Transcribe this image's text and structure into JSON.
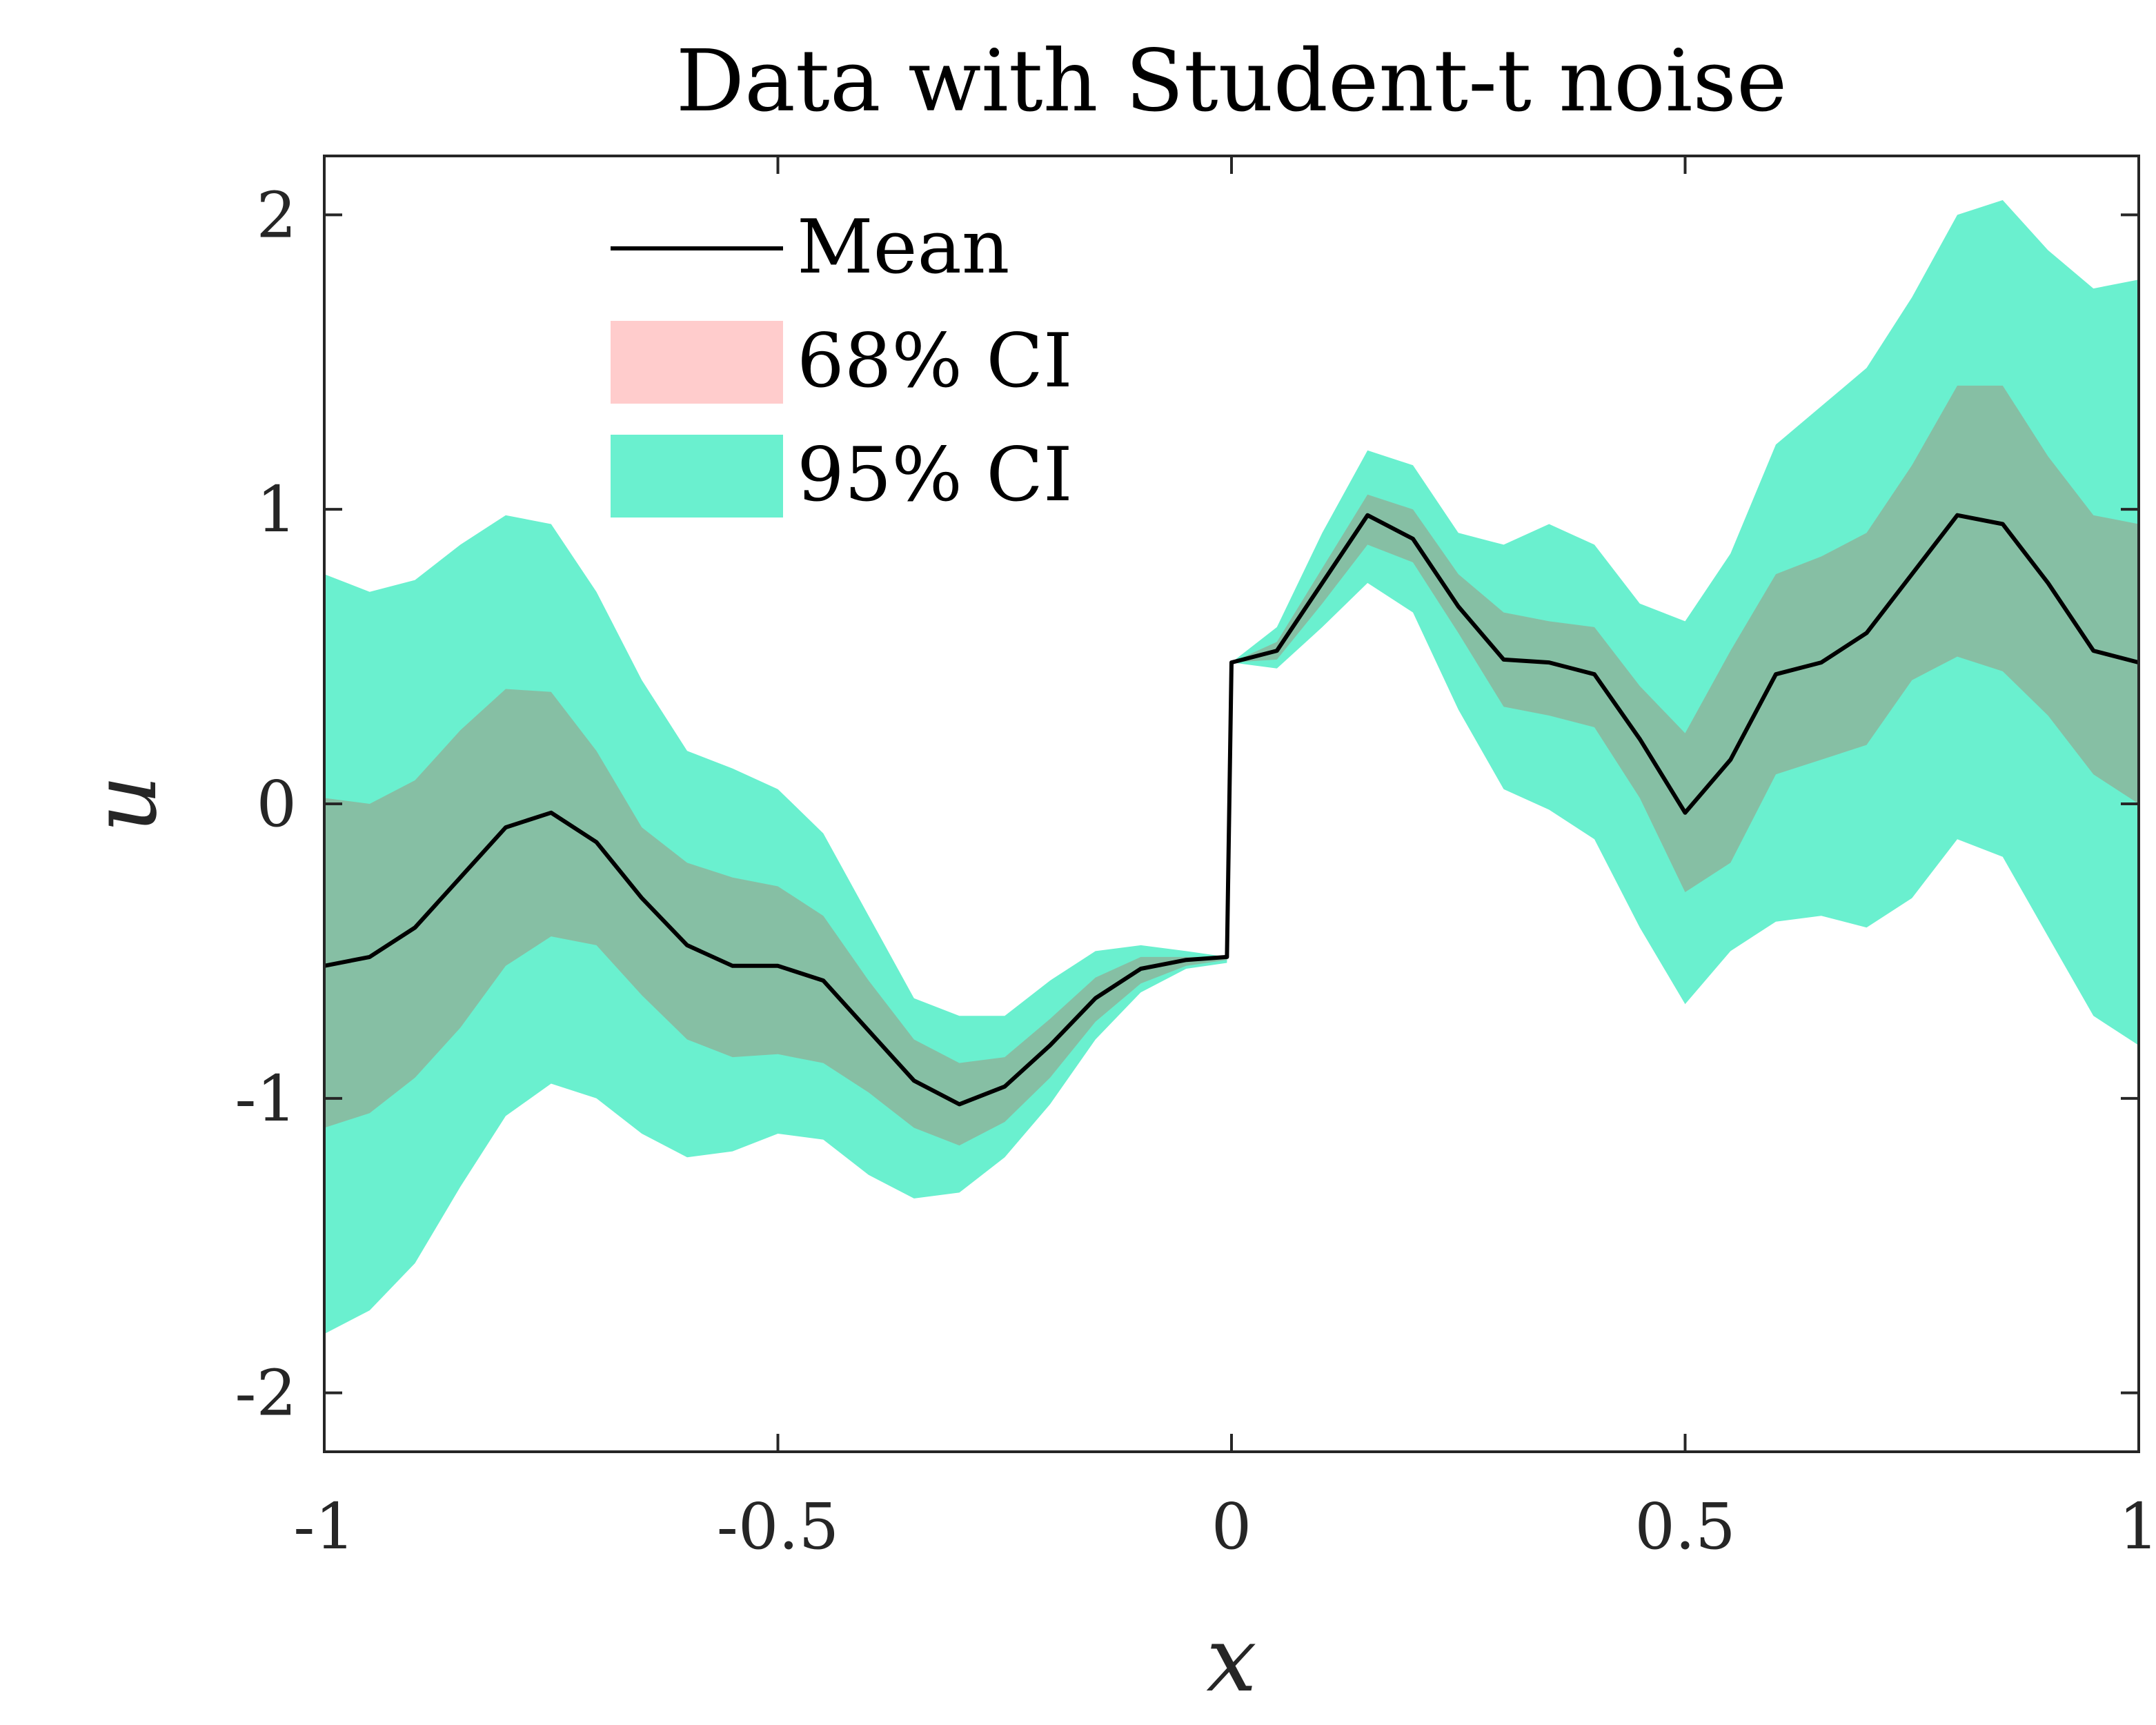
{
  "chart_data": {
    "type": "line",
    "title": "Data with Student-t noise",
    "xlabel": "x",
    "ylabel": "u",
    "xlim": [
      -1,
      1
    ],
    "ylim": [
      -2.2,
      2.2
    ],
    "xticks": [
      -1,
      -0.5,
      0,
      0.5,
      1
    ],
    "xtick_labels": [
      "-1",
      "-0.5",
      "0",
      "0.5",
      "1"
    ],
    "yticks": [
      -2,
      -1,
      0,
      1,
      2
    ],
    "ytick_labels": [
      "-2",
      "-1",
      "0",
      "1",
      "2"
    ],
    "grid": false,
    "legend_position": "top-left",
    "colors": {
      "mean": "#000000",
      "ci68": "#ffcccc",
      "ci95": "#6af0cf",
      "overlap": "#86bfa4"
    },
    "series": [
      {
        "name": "Mean",
        "x": [
          -1.0,
          -0.95,
          -0.9,
          -0.85,
          -0.8,
          -0.75,
          -0.7,
          -0.65,
          -0.6,
          -0.55,
          -0.5,
          -0.45,
          -0.4,
          -0.35,
          -0.3,
          -0.25,
          -0.2,
          -0.15,
          -0.1,
          -0.05,
          -0.005,
          0.0,
          0.05,
          0.1,
          0.15,
          0.2,
          0.25,
          0.3,
          0.35,
          0.4,
          0.45,
          0.5,
          0.55,
          0.6,
          0.65,
          0.7,
          0.75,
          0.8,
          0.85,
          0.9,
          0.95,
          1.0
        ],
        "values": [
          -0.55,
          -0.52,
          -0.42,
          -0.25,
          -0.08,
          -0.03,
          -0.13,
          -0.32,
          -0.48,
          -0.55,
          -0.55,
          -0.6,
          -0.77,
          -0.94,
          -1.02,
          -0.96,
          -0.82,
          -0.66,
          -0.56,
          -0.53,
          -0.52,
          0.48,
          0.52,
          0.75,
          0.98,
          0.9,
          0.67,
          0.49,
          0.48,
          0.44,
          0.22,
          -0.03,
          0.15,
          0.44,
          0.48,
          0.58,
          0.78,
          0.98,
          0.95,
          0.75,
          0.52,
          0.48
        ]
      },
      {
        "name": "68% CI",
        "x": [
          -1.0,
          -0.95,
          -0.9,
          -0.85,
          -0.8,
          -0.75,
          -0.7,
          -0.65,
          -0.6,
          -0.55,
          -0.5,
          -0.45,
          -0.4,
          -0.35,
          -0.3,
          -0.25,
          -0.2,
          -0.15,
          -0.1,
          -0.05,
          -0.005,
          0.0,
          0.05,
          0.1,
          0.15,
          0.2,
          0.25,
          0.3,
          0.35,
          0.4,
          0.45,
          0.5,
          0.55,
          0.6,
          0.65,
          0.7,
          0.75,
          0.8,
          0.85,
          0.9,
          0.95,
          1.0
        ],
        "upper": [
          0.02,
          0.0,
          0.08,
          0.25,
          0.39,
          0.38,
          0.18,
          -0.08,
          -0.2,
          -0.25,
          -0.28,
          -0.38,
          -0.6,
          -0.8,
          -0.88,
          -0.86,
          -0.73,
          -0.59,
          -0.52,
          -0.52,
          -0.52,
          0.48,
          0.55,
          0.8,
          1.05,
          1.0,
          0.78,
          0.65,
          0.62,
          0.6,
          0.4,
          0.24,
          0.52,
          0.78,
          0.84,
          0.92,
          1.15,
          1.42,
          1.42,
          1.18,
          0.98,
          0.95
        ],
        "lower": [
          -1.1,
          -1.05,
          -0.93,
          -0.76,
          -0.55,
          -0.45,
          -0.48,
          -0.65,
          -0.8,
          -0.86,
          -0.85,
          -0.88,
          -0.98,
          -1.1,
          -1.16,
          -1.08,
          -0.93,
          -0.74,
          -0.61,
          -0.55,
          -0.53,
          0.48,
          0.49,
          0.68,
          0.88,
          0.82,
          0.58,
          0.33,
          0.3,
          0.26,
          0.02,
          -0.3,
          -0.2,
          0.1,
          0.15,
          0.2,
          0.42,
          0.5,
          0.45,
          0.3,
          0.1,
          0.0
        ]
      },
      {
        "name": "95% CI",
        "x": [
          -1.0,
          -0.95,
          -0.9,
          -0.85,
          -0.8,
          -0.75,
          -0.7,
          -0.65,
          -0.6,
          -0.55,
          -0.5,
          -0.45,
          -0.4,
          -0.35,
          -0.3,
          -0.25,
          -0.2,
          -0.15,
          -0.1,
          -0.05,
          -0.005,
          0.0,
          0.05,
          0.1,
          0.15,
          0.2,
          0.25,
          0.3,
          0.35,
          0.4,
          0.45,
          0.5,
          0.55,
          0.6,
          0.65,
          0.7,
          0.75,
          0.8,
          0.85,
          0.9,
          0.95,
          1.0
        ],
        "upper": [
          0.78,
          0.72,
          0.76,
          0.88,
          0.98,
          0.95,
          0.72,
          0.42,
          0.18,
          0.12,
          0.05,
          -0.1,
          -0.38,
          -0.66,
          -0.72,
          -0.72,
          -0.6,
          -0.5,
          -0.48,
          -0.5,
          -0.52,
          0.48,
          0.6,
          0.92,
          1.2,
          1.15,
          0.92,
          0.88,
          0.95,
          0.88,
          0.68,
          0.62,
          0.85,
          1.22,
          1.35,
          1.48,
          1.72,
          2.0,
          2.05,
          1.88,
          1.75,
          1.78
        ],
        "lower": [
          -1.8,
          -1.72,
          -1.56,
          -1.3,
          -1.06,
          -0.95,
          -1.0,
          -1.12,
          -1.2,
          -1.18,
          -1.12,
          -1.14,
          -1.26,
          -1.34,
          -1.32,
          -1.2,
          -1.02,
          -0.8,
          -0.64,
          -0.56,
          -0.54,
          0.48,
          0.46,
          0.6,
          0.75,
          0.65,
          0.32,
          0.05,
          -0.02,
          -0.12,
          -0.42,
          -0.68,
          -0.5,
          -0.4,
          -0.38,
          -0.42,
          -0.32,
          -0.12,
          -0.18,
          -0.45,
          -0.72,
          -0.82
        ]
      }
    ]
  }
}
